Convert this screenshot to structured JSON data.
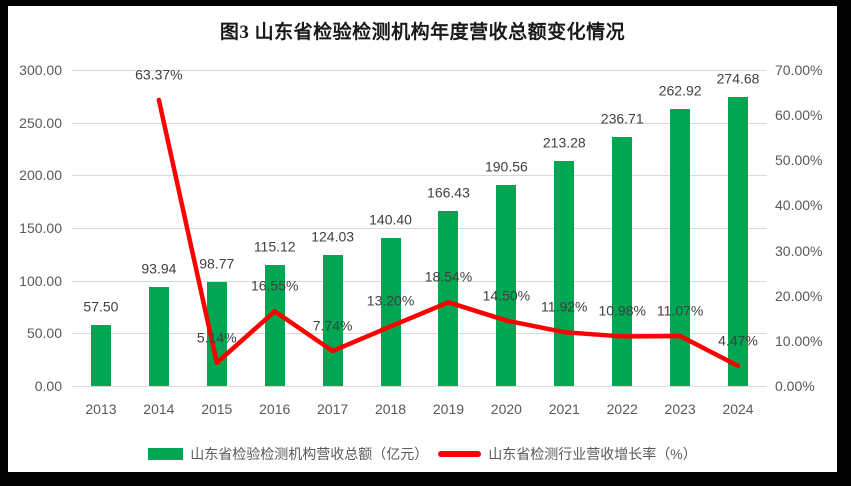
{
  "title": "图3  山东省检验检测机构年度营收总额变化情况",
  "colors": {
    "bar": "#00A651",
    "line": "#FE0000",
    "grid": "#D9D9D9",
    "tick_text": "#595959",
    "label_text": "#404040",
    "frame": "#000000",
    "background": "#FFFFFF"
  },
  "legend": {
    "bar_label": "山东省检验检测机构营收总额（亿元）",
    "line_label": "山东省检测行业营收增长率（%）"
  },
  "chart_data": {
    "type": "bar",
    "subtype": "bar-line-combo",
    "title": "图3  山东省检验检测机构年度营收总额变化情况",
    "categories": [
      "2013",
      "2014",
      "2015",
      "2016",
      "2017",
      "2018",
      "2019",
      "2020",
      "2021",
      "2022",
      "2023",
      "2024"
    ],
    "series": [
      {
        "name": "山东省检验检测机构营收总额（亿元）",
        "type": "bar",
        "axis": "left",
        "values": [
          57.5,
          93.94,
          98.77,
          115.12,
          124.03,
          140.4,
          166.43,
          190.56,
          213.28,
          236.71,
          262.92,
          274.68
        ],
        "data_labels": [
          "57.50",
          "93.94",
          "98.77",
          "115.12",
          "124.03",
          "140.40",
          "166.43",
          "190.56",
          "213.28",
          "236.71",
          "262.92",
          "274.68"
        ]
      },
      {
        "name": "山东省检测行业营收增长率（%）",
        "type": "line",
        "axis": "right",
        "values": [
          null,
          63.37,
          5.14,
          16.55,
          7.74,
          13.2,
          18.54,
          14.5,
          11.92,
          10.98,
          11.07,
          4.47
        ],
        "data_labels": [
          "",
          "63.37%",
          "5.14%",
          "16.55%",
          "7.74%",
          "13.20%",
          "18.54%",
          "14.50%",
          "11.92%",
          "10.98%",
          "11.07%",
          "4.47%"
        ]
      }
    ],
    "left_axis": {
      "min": 0,
      "max": 300,
      "step": 50,
      "tick_labels": [
        "300.00",
        "250.00",
        "200.00",
        "150.00",
        "100.00",
        "50.00",
        "0.00"
      ]
    },
    "right_axis": {
      "min": 0,
      "max": 70,
      "step": 10,
      "tick_labels": [
        "70.00%",
        "60.00%",
        "50.00%",
        "40.00%",
        "30.00%",
        "20.00%",
        "10.00%",
        "0.00%"
      ]
    },
    "grid": true,
    "legend_position": "bottom"
  }
}
